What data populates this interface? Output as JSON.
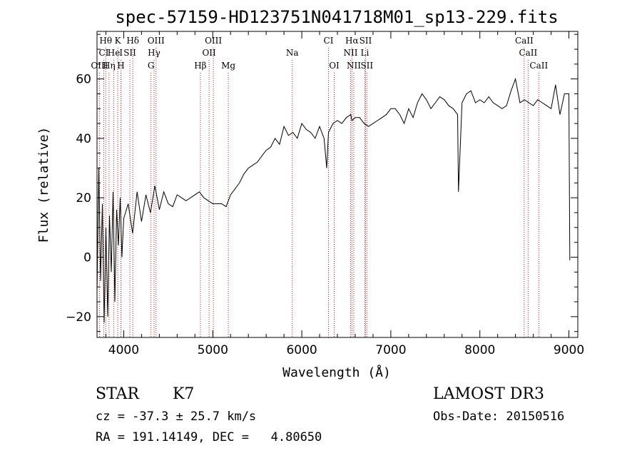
{
  "chart_data": {
    "type": "line",
    "title": "spec-57159-HD123751N041718M01_sp13-229.fits",
    "xlabel": "Wavelength (Å)",
    "ylabel": "Flux (relative)",
    "xlim": [
      3700,
      9100
    ],
    "ylim": [
      -27,
      76
    ],
    "xticks": [
      4000,
      5000,
      6000,
      7000,
      8000,
      9000
    ],
    "yticks": [
      -20,
      0,
      20,
      40,
      60
    ],
    "series": [
      {
        "name": "spectrum",
        "x": [
          3700,
          3720,
          3740,
          3760,
          3780,
          3800,
          3820,
          3840,
          3860,
          3880,
          3900,
          3920,
          3940,
          3960,
          3980,
          4000,
          4050,
          4100,
          4150,
          4200,
          4250,
          4300,
          4350,
          4400,
          4450,
          4500,
          4550,
          4600,
          4650,
          4700,
          4750,
          4800,
          4850,
          4900,
          4950,
          5000,
          5050,
          5100,
          5150,
          5200,
          5250,
          5300,
          5350,
          5400,
          5450,
          5500,
          5550,
          5600,
          5650,
          5700,
          5750,
          5800,
          5850,
          5900,
          5950,
          6000,
          6050,
          6100,
          6150,
          6200,
          6250,
          6280,
          6300,
          6350,
          6400,
          6450,
          6500,
          6550,
          6563,
          6600,
          6650,
          6700,
          6750,
          6800,
          6850,
          6900,
          6950,
          7000,
          7050,
          7100,
          7150,
          7200,
          7250,
          7300,
          7350,
          7400,
          7450,
          7500,
          7550,
          7600,
          7650,
          7700,
          7750,
          7760,
          7800,
          7850,
          7900,
          7950,
          8000,
          8050,
          8100,
          8150,
          8200,
          8250,
          8300,
          8350,
          8400,
          8450,
          8500,
          8550,
          8600,
          8650,
          8700,
          8750,
          8800,
          8850,
          8900,
          8950,
          9000,
          9010
        ],
        "values": [
          -12,
          30,
          -8,
          18,
          -22,
          10,
          -20,
          14,
          -5,
          22,
          -15,
          16,
          4,
          20,
          0,
          13,
          18,
          8,
          22,
          12,
          21,
          15,
          24,
          16,
          22,
          18,
          17,
          21,
          20,
          19,
          20,
          21,
          22,
          20,
          19,
          18,
          18,
          18,
          17,
          21,
          23,
          25,
          28,
          30,
          31,
          32,
          34,
          36,
          37,
          40,
          38,
          44,
          41,
          42,
          40,
          45,
          43,
          42,
          40,
          44,
          40,
          30,
          42,
          45,
          46,
          45,
          47,
          48,
          46,
          47,
          47,
          45,
          44,
          45,
          46,
          47,
          48,
          50,
          50,
          48,
          45,
          50,
          47,
          52,
          55,
          53,
          50,
          52,
          54,
          53,
          51,
          50,
          48,
          22,
          52,
          55,
          56,
          52,
          53,
          52,
          54,
          52,
          51,
          50,
          51,
          56,
          60,
          52,
          53,
          52,
          51,
          53,
          52,
          51,
          50,
          58,
          48,
          55,
          55,
          -1
        ]
      }
    ],
    "lines": [
      {
        "name": "Hθ",
        "wave": 3798,
        "row": 1
      },
      {
        "name": "K",
        "wave": 3933,
        "row": 1
      },
      {
        "name": "Hδ",
        "wave": 4102,
        "row": 1
      },
      {
        "name": "OIII",
        "wave": 4363,
        "row": 1
      },
      {
        "name": "OIII",
        "wave": 5007,
        "row": 1
      },
      {
        "name": "CI",
        "wave": 6300,
        "row": 1
      },
      {
        "name": "Hα",
        "wave": 6563,
        "row": 1
      },
      {
        "name": "SII",
        "wave": 6716,
        "row": 1
      },
      {
        "name": "CaII",
        "wave": 8498,
        "row": 1
      },
      {
        "name": "CI",
        "wave": 3776,
        "row": 2
      },
      {
        "name": "He",
        "wave": 3889,
        "row": 2
      },
      {
        "name": "I",
        "wave": 3970,
        "row": 2
      },
      {
        "name": "SII",
        "wave": 4069,
        "row": 2
      },
      {
        "name": "Hγ",
        "wave": 4341,
        "row": 2
      },
      {
        "name": "OII",
        "wave": 4959,
        "row": 2
      },
      {
        "name": "Na",
        "wave": 5893,
        "row": 2
      },
      {
        "name": "NII",
        "wave": 6548,
        "row": 2
      },
      {
        "name": "Li",
        "wave": 6708,
        "row": 2
      },
      {
        "name": "CaII",
        "wave": 8542,
        "row": 2
      },
      {
        "name": "OIII",
        "wave": 3727,
        "row": 3
      },
      {
        "name": "Hη",
        "wave": 3835,
        "row": 3
      },
      {
        "name": "H",
        "wave": 3968,
        "row": 3
      },
      {
        "name": "G",
        "wave": 4306,
        "row": 3
      },
      {
        "name": "Hβ",
        "wave": 4861,
        "row": 3
      },
      {
        "name": "Mg",
        "wave": 5175,
        "row": 3
      },
      {
        "name": "OI",
        "wave": 6364,
        "row": 3
      },
      {
        "name": "NII",
        "wave": 6584,
        "row": 3
      },
      {
        "name": "SII",
        "wave": 6731,
        "row": 3
      },
      {
        "name": "CaII",
        "wave": 8662,
        "row": 3
      }
    ]
  },
  "info": {
    "class": "STAR",
    "subclass": "K7",
    "survey": "LAMOST DR3",
    "cz": "cz = -37.3 ± 25.7 km/s",
    "obs_date": "Obs-Date: 20150516",
    "coords": "RA = 191.14149, DEC =   4.80650"
  }
}
